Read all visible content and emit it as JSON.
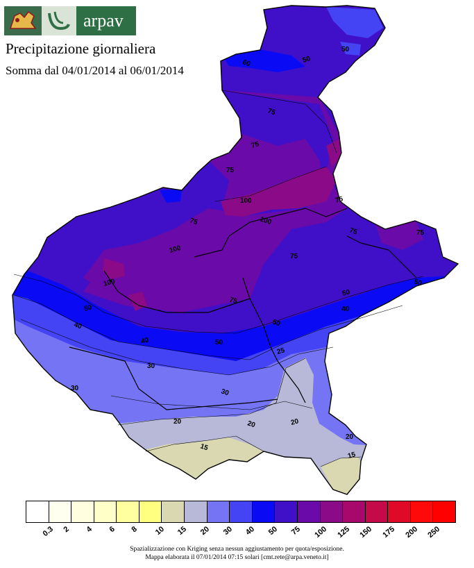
{
  "header": {
    "brand": "arpav",
    "title": "Precipitazione giornaliera",
    "subtitle": "Somma dal 04/01/2014 al 06/01/2014"
  },
  "icons": {
    "lion": "venetian-lion-icon",
    "logo": "arpav-logo-icon"
  },
  "map": {
    "contour_labels": [
      "60",
      "50",
      "50",
      "75",
      "75",
      "75",
      "75",
      "100",
      "100",
      "100",
      "75",
      "75",
      "75",
      "100",
      "75",
      "75",
      "50",
      "50",
      "40",
      "50",
      "40",
      "50",
      "40",
      "30",
      "30",
      "25",
      "20",
      "20",
      "20",
      "20",
      "15",
      "15",
      "30",
      "50"
    ],
    "colors": {
      "c15": "#d9d8b0",
      "c20": "#b8b8d8",
      "c30": "#7474f4",
      "c40": "#4444f4",
      "c50": "#0a0af4",
      "c75": "#4010c8",
      "c100": "#6a0aa8",
      "c125": "#8a0a88"
    }
  },
  "legend": {
    "classes": [
      {
        "label": "0.3",
        "color": "#ffffff"
      },
      {
        "label": "2",
        "color": "#fffff0"
      },
      {
        "label": "4",
        "color": "#ffffe0"
      },
      {
        "label": "6",
        "color": "#ffffc8"
      },
      {
        "label": "8",
        "color": "#ffffa0"
      },
      {
        "label": "10",
        "color": "#ffff80"
      },
      {
        "label": "15",
        "color": "#d9d8b0"
      },
      {
        "label": "20",
        "color": "#b8b8d8"
      },
      {
        "label": "30",
        "color": "#7474f4"
      },
      {
        "label": "40",
        "color": "#4444f4"
      },
      {
        "label": "50",
        "color": "#0a0af4"
      },
      {
        "label": "75",
        "color": "#4010c8"
      },
      {
        "label": "100",
        "color": "#6a0aa8"
      },
      {
        "label": "125",
        "color": "#8a0a88"
      },
      {
        "label": "150",
        "color": "#a8086c"
      },
      {
        "label": "175",
        "color": "#c40a48"
      },
      {
        "label": "200",
        "color": "#e00a28"
      },
      {
        "label": "250",
        "color": "#ff0a0a"
      },
      {
        "label": "",
        "color": "#ff0000"
      }
    ]
  },
  "footer": {
    "line1": "Spazializzazione con Kriging senza nessun aggiustamento per quota/esposizione.",
    "line2": "Mappa elaborata il 07/01/2014 07:15 solari [cmt.rete@arpa.veneto.it]"
  }
}
